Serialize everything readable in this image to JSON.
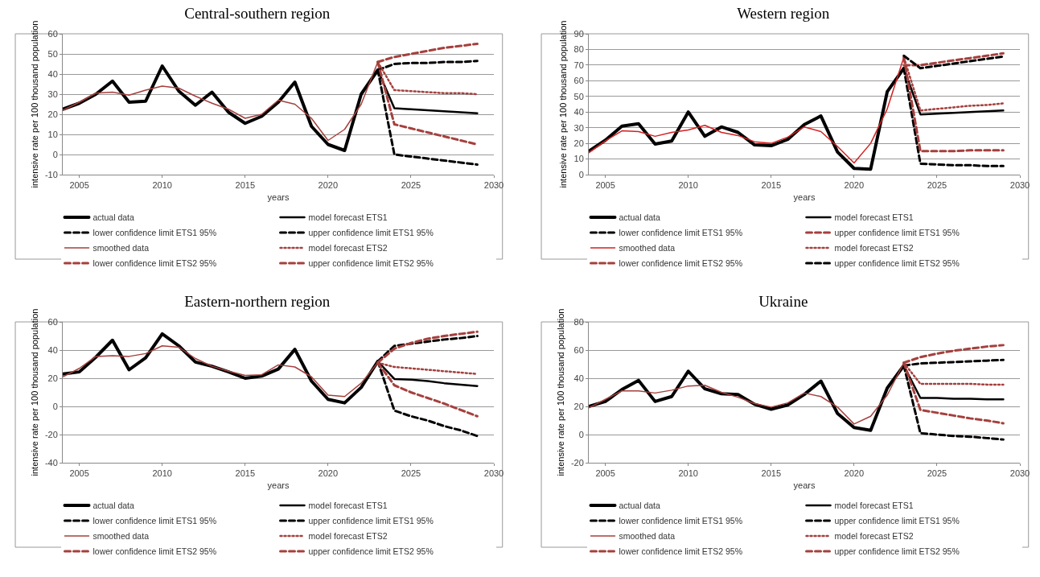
{
  "chart_data": [
    {
      "type": "line",
      "title": "Central-southern region",
      "xlabel": "years",
      "ylabel": "intensive rate per 100 thousand population",
      "x": [
        2004,
        2005,
        2006,
        2007,
        2008,
        2009,
        2010,
        2011,
        2012,
        2013,
        2014,
        2015,
        2016,
        2017,
        2018,
        2019,
        2020,
        2021,
        2022,
        2023,
        2024,
        2025,
        2026,
        2027,
        2028,
        2029
      ],
      "xlim": [
        2004,
        2030
      ],
      "xticks": [
        2005,
        2010,
        2015,
        2020,
        2025,
        2030
      ],
      "ylim": [
        -10,
        60
      ],
      "yticks": [
        -10,
        0,
        10,
        20,
        30,
        40,
        50,
        60
      ],
      "grid": "y",
      "legend": "bottom",
      "marker": "none",
      "series": [
        {
          "name": "actual data",
          "color": "#000000",
          "line_style": "solid",
          "values": [
            22.5,
            25.5,
            30,
            36.5,
            26,
            26.5,
            44,
            31.5,
            24.5,
            31,
            21,
            15.5,
            19,
            26,
            36,
            14,
            5,
            2,
            30,
            42,
            null,
            null,
            null,
            null,
            null,
            null
          ]
        },
        {
          "name": "model forecast ETS1",
          "color": "#000000",
          "line_style": "solid",
          "values": [
            null,
            null,
            null,
            null,
            null,
            null,
            null,
            null,
            null,
            null,
            null,
            null,
            null,
            null,
            null,
            null,
            null,
            null,
            null,
            42,
            23,
            22.5,
            22,
            21.5,
            21,
            20.5
          ]
        },
        {
          "name": "lower confidence limit ETS1 95%",
          "color": "#000000",
          "line_style": "dashed",
          "values": [
            null,
            null,
            null,
            null,
            null,
            null,
            null,
            null,
            null,
            null,
            null,
            null,
            null,
            null,
            null,
            null,
            null,
            null,
            null,
            42,
            0,
            -1,
            -2,
            -3,
            -4,
            -5
          ]
        },
        {
          "name": "upper confidence limit ETS1 95%",
          "color": "#000000",
          "line_style": "dashed",
          "values": [
            null,
            null,
            null,
            null,
            null,
            null,
            null,
            null,
            null,
            null,
            null,
            null,
            null,
            null,
            null,
            null,
            null,
            null,
            null,
            42,
            45,
            45.5,
            45.5,
            46,
            46,
            46.5
          ]
        },
        {
          "name": "smoothed data",
          "color": "#a5403d",
          "line_style": "solid",
          "values": [
            22,
            26,
            30.5,
            31,
            29.5,
            32,
            34,
            33,
            29,
            25.5,
            22.5,
            18,
            20,
            27,
            25,
            18,
            7,
            12.5,
            25,
            46,
            null,
            null,
            null,
            null,
            null,
            null
          ]
        },
        {
          "name": "model forecast ETS2",
          "color": "#a5403d",
          "line_style": "dotted",
          "values": [
            null,
            null,
            null,
            null,
            null,
            null,
            null,
            null,
            null,
            null,
            null,
            null,
            null,
            null,
            null,
            null,
            null,
            null,
            null,
            46,
            32,
            31.5,
            31,
            30.5,
            30.5,
            30
          ]
        },
        {
          "name": "lower confidence limit ETS2 95%",
          "color": "#a5403d",
          "line_style": "dashed",
          "values": [
            null,
            null,
            null,
            null,
            null,
            null,
            null,
            null,
            null,
            null,
            null,
            null,
            null,
            null,
            null,
            null,
            null,
            null,
            null,
            46,
            15,
            13,
            11,
            9,
            7,
            5
          ]
        },
        {
          "name": "upper confidence limit ETS2 95%",
          "color": "#a5403d",
          "line_style": "dashed",
          "values": [
            null,
            null,
            null,
            null,
            null,
            null,
            null,
            null,
            null,
            null,
            null,
            null,
            null,
            null,
            null,
            null,
            null,
            null,
            null,
            46,
            48.5,
            50,
            51.5,
            53,
            54,
            55
          ]
        }
      ]
    },
    {
      "type": "line",
      "title": "Western region",
      "xlabel": "years",
      "ylabel": "intensive rate per 100 thousand population",
      "x": [
        2004,
        2005,
        2006,
        2007,
        2008,
        2009,
        2010,
        2011,
        2012,
        2013,
        2014,
        2015,
        2016,
        2017,
        2018,
        2019,
        2020,
        2021,
        2022,
        2023,
        2024,
        2025,
        2026,
        2027,
        2028,
        2029
      ],
      "xlim": [
        2004,
        2030
      ],
      "xticks": [
        2005,
        2010,
        2015,
        2020,
        2025,
        2030
      ],
      "ylim": [
        0,
        90
      ],
      "yticks": [
        0,
        10,
        20,
        30,
        40,
        50,
        60,
        70,
        80,
        90
      ],
      "grid": "y",
      "legend": "bottom",
      "marker": "none",
      "series": [
        {
          "name": "actual data",
          "color": "#000000",
          "line_style": "solid",
          "values": [
            15,
            22,
            31,
            32.5,
            19.5,
            21.5,
            40,
            24.5,
            30.5,
            27,
            19,
            18.5,
            22.5,
            32,
            37.5,
            14.5,
            4,
            3.5,
            53,
            68,
            null,
            null,
            null,
            null,
            null,
            null
          ]
        },
        {
          "name": "model forecast ETS1",
          "color": "#000000",
          "line_style": "solid",
          "values": [
            null,
            null,
            null,
            null,
            null,
            null,
            null,
            null,
            null,
            null,
            null,
            null,
            null,
            null,
            null,
            null,
            null,
            null,
            null,
            68,
            38.5,
            39,
            39.5,
            40,
            40.5,
            41
          ]
        },
        {
          "name": "lower confidence limit ETS1 95%",
          "color": "#000000",
          "line_style": "dashed",
          "values": [
            null,
            null,
            null,
            null,
            null,
            null,
            null,
            null,
            null,
            null,
            null,
            null,
            null,
            null,
            null,
            null,
            null,
            null,
            null,
            68,
            7,
            6.5,
            6,
            6,
            5.5,
            5.5
          ]
        },
        {
          "name": "upper confidence limit ETS1 95%",
          "color": "#a5403d",
          "line_style": "dashed",
          "values": [
            null,
            null,
            null,
            null,
            null,
            null,
            null,
            null,
            null,
            null,
            null,
            null,
            null,
            null,
            null,
            null,
            null,
            null,
            null,
            70,
            70,
            71.5,
            73,
            74.5,
            76,
            77.5
          ]
        },
        {
          "name": "smoothed data",
          "color": "#d42020",
          "line_style": "solid",
          "values": [
            14,
            21.5,
            28,
            27.5,
            24.5,
            27,
            28.5,
            31.5,
            27,
            25,
            21,
            20,
            24,
            30.5,
            27.5,
            18,
            7.5,
            20,
            42,
            75,
            null,
            null,
            null,
            null,
            null,
            null
          ]
        },
        {
          "name": "model forecast ETS2",
          "color": "#a5403d",
          "line_style": "dotted",
          "values": [
            null,
            null,
            null,
            null,
            null,
            null,
            null,
            null,
            null,
            null,
            null,
            null,
            null,
            null,
            null,
            null,
            null,
            null,
            null,
            75,
            41,
            42,
            43,
            44,
            44.5,
            45.5
          ]
        },
        {
          "name": "lower confidence limit ETS2 95%",
          "color": "#a5403d",
          "line_style": "dashed",
          "values": [
            null,
            null,
            null,
            null,
            null,
            null,
            null,
            null,
            null,
            null,
            null,
            null,
            null,
            null,
            null,
            null,
            null,
            null,
            null,
            75,
            15,
            15,
            15,
            15.5,
            15.5,
            15.5
          ]
        },
        {
          "name": "upper confidence limit ETS2 95%",
          "color": "#000000",
          "line_style": "dashed",
          "values": [
            null,
            null,
            null,
            null,
            null,
            null,
            null,
            null,
            null,
            null,
            null,
            null,
            null,
            null,
            null,
            null,
            null,
            null,
            null,
            76,
            68,
            69.5,
            71,
            72.5,
            74,
            75.5
          ]
        }
      ]
    },
    {
      "type": "line",
      "title": "Eastern-northern region",
      "xlabel": "years",
      "ylabel": "intensive rate per 100 thousand population",
      "x": [
        2004,
        2005,
        2006,
        2007,
        2008,
        2009,
        2010,
        2011,
        2012,
        2013,
        2014,
        2015,
        2016,
        2017,
        2018,
        2019,
        2020,
        2021,
        2022,
        2023,
        2024,
        2025,
        2026,
        2027,
        2028,
        2029
      ],
      "xlim": [
        2004,
        2030
      ],
      "xticks": [
        2005,
        2010,
        2015,
        2020,
        2025,
        2030
      ],
      "ylim": [
        -40,
        60
      ],
      "yticks": [
        -40,
        -20,
        0,
        20,
        40,
        60
      ],
      "grid": "y",
      "legend": "bottom",
      "marker": "none",
      "series": [
        {
          "name": "actual data",
          "color": "#000000",
          "line_style": "solid",
          "values": [
            23,
            24.5,
            35,
            47,
            26,
            34.5,
            51.5,
            43,
            31.5,
            28.5,
            24.5,
            20,
            21.5,
            26.5,
            40.5,
            18,
            5,
            2.5,
            13.5,
            32,
            null,
            null,
            null,
            null,
            null,
            null
          ]
        },
        {
          "name": "model forecast ETS1",
          "color": "#000000",
          "line_style": "solid",
          "values": [
            null,
            null,
            null,
            null,
            null,
            null,
            null,
            null,
            null,
            null,
            null,
            null,
            null,
            null,
            null,
            null,
            null,
            null,
            null,
            32,
            19.5,
            19,
            18,
            16.5,
            15.5,
            14.5
          ]
        },
        {
          "name": "lower confidence limit ETS1 95%",
          "color": "#000000",
          "line_style": "dashed",
          "values": [
            null,
            null,
            null,
            null,
            null,
            null,
            null,
            null,
            null,
            null,
            null,
            null,
            null,
            null,
            null,
            null,
            null,
            null,
            null,
            32,
            -3,
            -7,
            -10,
            -14,
            -17,
            -21
          ]
        },
        {
          "name": "upper confidence limit ETS1 95%",
          "color": "#000000",
          "line_style": "dashed",
          "values": [
            null,
            null,
            null,
            null,
            null,
            null,
            null,
            null,
            null,
            null,
            null,
            null,
            null,
            null,
            null,
            null,
            null,
            null,
            null,
            32,
            43,
            44.5,
            46,
            47.5,
            48.5,
            50
          ]
        },
        {
          "name": "smoothed data",
          "color": "#a5403d",
          "line_style": "solid",
          "values": [
            21,
            27,
            35.5,
            36,
            35.5,
            37.5,
            43,
            42,
            34,
            28.5,
            25,
            22,
            22.5,
            29.5,
            28,
            21,
            8,
            7,
            16.5,
            31,
            null,
            null,
            null,
            null,
            null,
            null
          ]
        },
        {
          "name": "model forecast ETS2",
          "color": "#a5403d",
          "line_style": "dotted",
          "values": [
            null,
            null,
            null,
            null,
            null,
            null,
            null,
            null,
            null,
            null,
            null,
            null,
            null,
            null,
            null,
            null,
            null,
            null,
            null,
            31,
            28,
            27,
            26,
            25,
            24,
            23
          ]
        },
        {
          "name": "lower confidence limit ETS2 95%",
          "color": "#a5403d",
          "line_style": "dashed",
          "values": [
            null,
            null,
            null,
            null,
            null,
            null,
            null,
            null,
            null,
            null,
            null,
            null,
            null,
            null,
            null,
            null,
            null,
            null,
            null,
            31,
            15,
            10,
            6,
            2,
            -2.5,
            -7
          ]
        },
        {
          "name": "upper confidence limit ETS2 95%",
          "color": "#a5403d",
          "line_style": "dashed",
          "values": [
            null,
            null,
            null,
            null,
            null,
            null,
            null,
            null,
            null,
            null,
            null,
            null,
            null,
            null,
            null,
            null,
            null,
            null,
            null,
            31,
            41,
            45,
            48,
            50,
            51.5,
            53
          ]
        }
      ]
    },
    {
      "type": "line",
      "title": "Ukraine",
      "xlabel": "years",
      "ylabel": "intensive rate per 100 thousand population",
      "x": [
        2004,
        2005,
        2006,
        2007,
        2008,
        2009,
        2010,
        2011,
        2012,
        2013,
        2014,
        2015,
        2016,
        2017,
        2018,
        2019,
        2020,
        2021,
        2022,
        2023,
        2024,
        2025,
        2026,
        2027,
        2028,
        2029
      ],
      "xlim": [
        2004,
        2030
      ],
      "xticks": [
        2005,
        2010,
        2015,
        2020,
        2025,
        2030
      ],
      "ylim": [
        -20,
        80
      ],
      "yticks": [
        -20,
        0,
        20,
        40,
        60,
        80
      ],
      "grid": "y",
      "legend": "bottom",
      "marker": "none",
      "series": [
        {
          "name": "actual data",
          "color": "#000000",
          "line_style": "solid",
          "values": [
            20,
            23.5,
            32,
            38.5,
            23.5,
            27,
            45,
            32.5,
            29,
            28.5,
            21.5,
            18,
            21,
            28.5,
            38,
            15,
            5,
            3,
            33,
            49,
            null,
            null,
            null,
            null,
            null,
            null
          ]
        },
        {
          "name": "model forecast ETS1",
          "color": "#000000",
          "line_style": "solid",
          "values": [
            null,
            null,
            null,
            null,
            null,
            null,
            null,
            null,
            null,
            null,
            null,
            null,
            null,
            null,
            null,
            null,
            null,
            null,
            null,
            49,
            26,
            26,
            25.5,
            25.5,
            25,
            25
          ]
        },
        {
          "name": "lower confidence limit ETS1 95%",
          "color": "#000000",
          "line_style": "dashed",
          "values": [
            null,
            null,
            null,
            null,
            null,
            null,
            null,
            null,
            null,
            null,
            null,
            null,
            null,
            null,
            null,
            null,
            null,
            null,
            null,
            49,
            1,
            0,
            -1,
            -1.5,
            -2.5,
            -3.5
          ]
        },
        {
          "name": "upper confidence limit ETS1 95%",
          "color": "#000000",
          "line_style": "dashed",
          "values": [
            null,
            null,
            null,
            null,
            null,
            null,
            null,
            null,
            null,
            null,
            null,
            null,
            null,
            null,
            null,
            null,
            null,
            null,
            null,
            49,
            50.5,
            51,
            51.5,
            52,
            52.5,
            53
          ]
        },
        {
          "name": "smoothed data",
          "color": "#a5403d",
          "line_style": "solid",
          "values": [
            19,
            25,
            31,
            31,
            29.5,
            31.5,
            34.5,
            35,
            30,
            26.5,
            22,
            19.5,
            22.5,
            29.5,
            27,
            19.5,
            7.5,
            13,
            28,
            51,
            null,
            null,
            null,
            null,
            null,
            null
          ]
        },
        {
          "name": "model forecast ETS2",
          "color": "#a5403d",
          "line_style": "dotted",
          "values": [
            null,
            null,
            null,
            null,
            null,
            null,
            null,
            null,
            null,
            null,
            null,
            null,
            null,
            null,
            null,
            null,
            null,
            null,
            null,
            51,
            36,
            36,
            36,
            36,
            35.5,
            35.5
          ]
        },
        {
          "name": "lower confidence limit ETS2 95%",
          "color": "#a5403d",
          "line_style": "dashed",
          "values": [
            null,
            null,
            null,
            null,
            null,
            null,
            null,
            null,
            null,
            null,
            null,
            null,
            null,
            null,
            null,
            null,
            null,
            null,
            null,
            51,
            17.5,
            15.5,
            13.5,
            11.5,
            10,
            8
          ]
        },
        {
          "name": "upper confidence limit ETS2 95%",
          "color": "#a5403d",
          "line_style": "dashed",
          "values": [
            null,
            null,
            null,
            null,
            null,
            null,
            null,
            null,
            null,
            null,
            null,
            null,
            null,
            null,
            null,
            null,
            null,
            null,
            null,
            51,
            55,
            57.5,
            59.5,
            61,
            62.5,
            63.5
          ]
        }
      ]
    }
  ]
}
